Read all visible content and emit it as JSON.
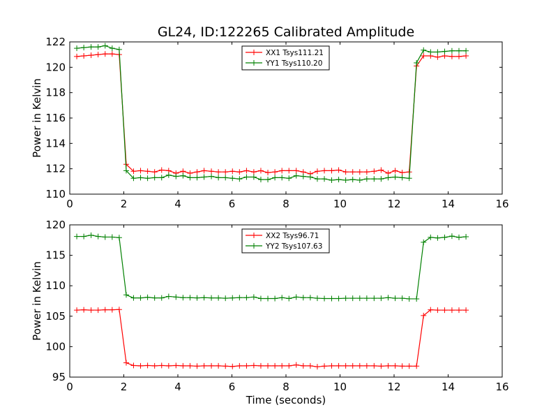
{
  "figure": {
    "title": "GL24, ID:122265 Calibrated Amplitude",
    "xlabel": "Time (seconds)"
  },
  "colors": {
    "xx": "#ff0000",
    "yy": "#008000"
  },
  "chart_data": [
    {
      "type": "line",
      "title": "GL24, ID:122265 Calibrated Amplitude",
      "xlabel": "",
      "ylabel": "Power in Kelvin",
      "xlim": [
        0,
        16
      ],
      "ylim": [
        110,
        122
      ],
      "xticks": [
        0,
        2,
        4,
        6,
        8,
        10,
        12,
        14,
        16
      ],
      "yticks": [
        110,
        112,
        114,
        116,
        118,
        120,
        122
      ],
      "grid": false,
      "legend_position": "top-center",
      "x": [
        0.26,
        0.52,
        0.79,
        1.05,
        1.31,
        1.57,
        1.83,
        2.09,
        2.36,
        2.62,
        2.88,
        3.14,
        3.4,
        3.66,
        3.93,
        4.19,
        4.45,
        4.71,
        4.97,
        5.24,
        5.5,
        5.76,
        6.02,
        6.28,
        6.54,
        6.81,
        7.07,
        7.33,
        7.59,
        7.85,
        8.11,
        8.38,
        8.64,
        8.9,
        9.16,
        9.42,
        9.69,
        9.95,
        10.21,
        10.47,
        10.73,
        10.99,
        11.26,
        11.52,
        11.78,
        12.04,
        12.3,
        12.56,
        12.83,
        13.09,
        13.35,
        13.61,
        13.87,
        14.14,
        14.4,
        14.66
      ],
      "series": [
        {
          "name": "XX1 Tsys111.21",
          "color": "#ff0000",
          "values": [
            120.85,
            120.9,
            120.95,
            121.0,
            121.05,
            121.05,
            121.0,
            112.35,
            111.8,
            111.85,
            111.8,
            111.75,
            111.9,
            111.85,
            111.65,
            111.8,
            111.65,
            111.75,
            111.85,
            111.8,
            111.75,
            111.75,
            111.8,
            111.75,
            111.85,
            111.75,
            111.85,
            111.7,
            111.75,
            111.85,
            111.85,
            111.85,
            111.75,
            111.6,
            111.8,
            111.85,
            111.85,
            111.9,
            111.75,
            111.75,
            111.75,
            111.75,
            111.8,
            111.9,
            111.65,
            111.85,
            111.7,
            111.75,
            120.1,
            120.9,
            120.9,
            120.8,
            120.9,
            120.85,
            120.85,
            120.9
          ]
        },
        {
          "name": "YY1 Tsys110.20",
          "color": "#008000",
          "values": [
            121.5,
            121.55,
            121.6,
            121.6,
            121.7,
            121.5,
            121.4,
            111.85,
            111.25,
            111.3,
            111.25,
            111.3,
            111.3,
            111.5,
            111.4,
            111.45,
            111.3,
            111.3,
            111.35,
            111.4,
            111.3,
            111.3,
            111.25,
            111.2,
            111.35,
            111.35,
            111.15,
            111.15,
            111.3,
            111.3,
            111.25,
            111.45,
            111.4,
            111.35,
            111.2,
            111.2,
            111.1,
            111.15,
            111.1,
            111.15,
            111.1,
            111.2,
            111.2,
            111.2,
            111.3,
            111.35,
            111.3,
            111.25,
            120.35,
            121.35,
            121.2,
            121.2,
            121.25,
            121.3,
            121.3,
            121.3
          ]
        }
      ]
    },
    {
      "type": "line",
      "title": "",
      "xlabel": "Time (seconds)",
      "ylabel": "Power in Kelvin",
      "xlim": [
        0,
        16
      ],
      "ylim": [
        95,
        120
      ],
      "xticks": [
        0,
        2,
        4,
        6,
        8,
        10,
        12,
        14,
        16
      ],
      "yticks": [
        95,
        100,
        105,
        110,
        115,
        120
      ],
      "grid": false,
      "legend_position": "top-center",
      "x": [
        0.26,
        0.52,
        0.79,
        1.05,
        1.31,
        1.57,
        1.83,
        2.09,
        2.36,
        2.62,
        2.88,
        3.14,
        3.4,
        3.66,
        3.93,
        4.19,
        4.45,
        4.71,
        4.97,
        5.24,
        5.5,
        5.76,
        6.02,
        6.28,
        6.54,
        6.81,
        7.07,
        7.33,
        7.59,
        7.85,
        8.11,
        8.38,
        8.64,
        8.9,
        9.16,
        9.42,
        9.69,
        9.95,
        10.21,
        10.47,
        10.73,
        10.99,
        11.26,
        11.52,
        11.78,
        12.04,
        12.3,
        12.56,
        12.83,
        13.09,
        13.35,
        13.61,
        13.87,
        14.14,
        14.4,
        14.66
      ],
      "series": [
        {
          "name": "XX2 Tsys96.71",
          "color": "#ff0000",
          "values": [
            106.0,
            106.05,
            106.0,
            106.0,
            106.05,
            106.05,
            106.1,
            97.35,
            96.9,
            96.85,
            96.9,
            96.85,
            96.9,
            96.85,
            96.9,
            96.85,
            96.85,
            96.8,
            96.85,
            96.85,
            96.85,
            96.8,
            96.75,
            96.85,
            96.85,
            96.9,
            96.85,
            96.85,
            96.85,
            96.85,
            96.85,
            97.0,
            96.85,
            96.85,
            96.7,
            96.8,
            96.85,
            96.85,
            96.85,
            96.85,
            96.85,
            96.85,
            96.85,
            96.8,
            96.85,
            96.85,
            96.8,
            96.8,
            96.8,
            105.1,
            106.05,
            106.0,
            106.0,
            106.0,
            106.0,
            106.0
          ]
        },
        {
          "name": "YY2 Tsys107.63",
          "color": "#008000",
          "values": [
            118.1,
            118.1,
            118.3,
            118.1,
            118.0,
            118.0,
            117.9,
            108.5,
            108.0,
            108.0,
            108.1,
            108.0,
            108.0,
            108.25,
            108.15,
            108.05,
            108.05,
            108.0,
            108.05,
            108.0,
            108.0,
            107.95,
            108.0,
            108.05,
            108.05,
            108.15,
            107.9,
            107.9,
            107.9,
            108.05,
            107.9,
            108.15,
            108.05,
            108.05,
            107.95,
            107.9,
            107.9,
            107.9,
            107.95,
            107.95,
            107.95,
            107.95,
            107.95,
            107.95,
            108.05,
            107.95,
            107.95,
            107.85,
            107.85,
            117.15,
            117.95,
            117.85,
            117.95,
            118.15,
            117.95,
            118.05
          ]
        }
      ]
    }
  ]
}
